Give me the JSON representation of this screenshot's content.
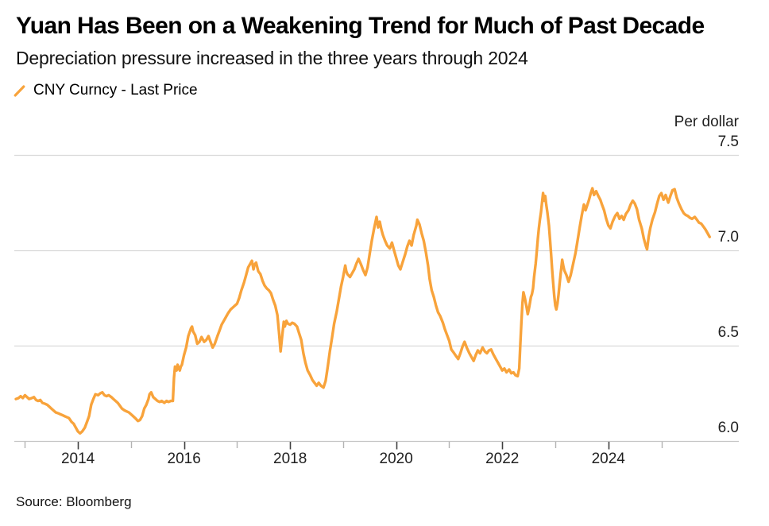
{
  "header": {
    "title": "Yuan Has Been on a Weakening Trend for Much of Past Decade",
    "subtitle": "Depreciation pressure increased in the three years through 2024"
  },
  "legend": {
    "label": "CNY Curncy - Last Price",
    "icon": "orange-slash"
  },
  "source": "Source: Bloomberg",
  "colors": {
    "line": "#F8A33B",
    "grid": "#D9D9D9",
    "baseline": "#C4C4C4",
    "tick_major": "#404040",
    "tick_minor": "#B3B3B3",
    "text": "#1F1F1F"
  },
  "chart_data": {
    "type": "line",
    "series_name": "CNY Curncy - Last Price",
    "ylabel": "Per dollar",
    "grid": true,
    "legend_position": "top-left",
    "y_ticks": [
      7.5,
      7.0,
      6.5,
      6.0
    ],
    "x_major_ticks": [
      2014,
      2016,
      2018,
      2020,
      2022,
      2024
    ],
    "x_minor_ticks": [
      2013,
      2015,
      2017,
      2019,
      2021,
      2023,
      2025
    ],
    "x_range": [
      2012.8,
      2026.46
    ],
    "y_range": [
      6.0,
      7.5
    ],
    "points": [
      [
        2012.83,
        6.22
      ],
      [
        2012.88,
        6.225
      ],
      [
        2012.92,
        6.235
      ],
      [
        2012.96,
        6.225
      ],
      [
        2013.0,
        6.24
      ],
      [
        2013.04,
        6.23
      ],
      [
        2013.08,
        6.22
      ],
      [
        2013.13,
        6.225
      ],
      [
        2013.17,
        6.23
      ],
      [
        2013.21,
        6.215
      ],
      [
        2013.25,
        6.21
      ],
      [
        2013.29,
        6.215
      ],
      [
        2013.33,
        6.2
      ],
      [
        2013.38,
        6.195
      ],
      [
        2013.42,
        6.19
      ],
      [
        2013.46,
        6.18
      ],
      [
        2013.5,
        6.17
      ],
      [
        2013.54,
        6.16
      ],
      [
        2013.58,
        6.15
      ],
      [
        2013.63,
        6.145
      ],
      [
        2013.67,
        6.14
      ],
      [
        2013.71,
        6.135
      ],
      [
        2013.75,
        6.13
      ],
      [
        2013.79,
        6.125
      ],
      [
        2013.83,
        6.12
      ],
      [
        2013.88,
        6.1
      ],
      [
        2013.92,
        6.09
      ],
      [
        2013.96,
        6.07
      ],
      [
        2014.0,
        6.05
      ],
      [
        2014.04,
        6.04
      ],
      [
        2014.08,
        6.05
      ],
      [
        2014.13,
        6.07
      ],
      [
        2014.17,
        6.1
      ],
      [
        2014.21,
        6.13
      ],
      [
        2014.25,
        6.19
      ],
      [
        2014.29,
        6.22
      ],
      [
        2014.33,
        6.245
      ],
      [
        2014.38,
        6.24
      ],
      [
        2014.42,
        6.25
      ],
      [
        2014.46,
        6.255
      ],
      [
        2014.5,
        6.24
      ],
      [
        2014.54,
        6.235
      ],
      [
        2014.58,
        6.24
      ],
      [
        2014.63,
        6.23
      ],
      [
        2014.67,
        6.22
      ],
      [
        2014.71,
        6.21
      ],
      [
        2014.75,
        6.2
      ],
      [
        2014.79,
        6.185
      ],
      [
        2014.83,
        6.17
      ],
      [
        2014.88,
        6.16
      ],
      [
        2014.92,
        6.155
      ],
      [
        2014.96,
        6.15
      ],
      [
        2015.0,
        6.14
      ],
      [
        2015.04,
        6.13
      ],
      [
        2015.08,
        6.12
      ],
      [
        2015.13,
        6.105
      ],
      [
        2015.17,
        6.11
      ],
      [
        2015.21,
        6.13
      ],
      [
        2015.25,
        6.17
      ],
      [
        2015.29,
        6.19
      ],
      [
        2015.33,
        6.22
      ],
      [
        2015.35,
        6.245
      ],
      [
        2015.38,
        6.255
      ],
      [
        2015.42,
        6.23
      ],
      [
        2015.46,
        6.22
      ],
      [
        2015.5,
        6.21
      ],
      [
        2015.54,
        6.205
      ],
      [
        2015.58,
        6.21
      ],
      [
        2015.63,
        6.2
      ],
      [
        2015.67,
        6.21
      ],
      [
        2015.71,
        6.205
      ],
      [
        2015.75,
        6.21
      ],
      [
        2015.79,
        6.21
      ],
      [
        2015.81,
        6.33
      ],
      [
        2015.83,
        6.39
      ],
      [
        2015.86,
        6.37
      ],
      [
        2015.88,
        6.4
      ],
      [
        2015.9,
        6.38
      ],
      [
        2015.92,
        6.37
      ],
      [
        2015.94,
        6.39
      ],
      [
        2015.96,
        6.4
      ],
      [
        2016.0,
        6.45
      ],
      [
        2016.04,
        6.49
      ],
      [
        2016.08,
        6.55
      ],
      [
        2016.13,
        6.59
      ],
      [
        2016.15,
        6.6
      ],
      [
        2016.17,
        6.575
      ],
      [
        2016.21,
        6.555
      ],
      [
        2016.25,
        6.51
      ],
      [
        2016.29,
        6.52
      ],
      [
        2016.33,
        6.545
      ],
      [
        2016.38,
        6.52
      ],
      [
        2016.42,
        6.53
      ],
      [
        2016.46,
        6.55
      ],
      [
        2016.5,
        6.52
      ],
      [
        2016.54,
        6.49
      ],
      [
        2016.58,
        6.51
      ],
      [
        2016.63,
        6.55
      ],
      [
        2016.67,
        6.58
      ],
      [
        2016.71,
        6.61
      ],
      [
        2016.75,
        6.63
      ],
      [
        2016.79,
        6.65
      ],
      [
        2016.83,
        6.67
      ],
      [
        2016.88,
        6.69
      ],
      [
        2016.92,
        6.7
      ],
      [
        2016.96,
        6.71
      ],
      [
        2017.0,
        6.72
      ],
      [
        2017.04,
        6.75
      ],
      [
        2017.08,
        6.79
      ],
      [
        2017.13,
        6.83
      ],
      [
        2017.17,
        6.87
      ],
      [
        2017.21,
        6.91
      ],
      [
        2017.25,
        6.93
      ],
      [
        2017.28,
        6.945
      ],
      [
        2017.31,
        6.9
      ],
      [
        2017.33,
        6.925
      ],
      [
        2017.36,
        6.935
      ],
      [
        2017.4,
        6.89
      ],
      [
        2017.44,
        6.875
      ],
      [
        2017.48,
        6.84
      ],
      [
        2017.52,
        6.815
      ],
      [
        2017.56,
        6.8
      ],
      [
        2017.6,
        6.79
      ],
      [
        2017.64,
        6.775
      ],
      [
        2017.68,
        6.74
      ],
      [
        2017.72,
        6.71
      ],
      [
        2017.76,
        6.66
      ],
      [
        2017.79,
        6.57
      ],
      [
        2017.82,
        6.47
      ],
      [
        2017.85,
        6.55
      ],
      [
        2017.88,
        6.625
      ],
      [
        2017.9,
        6.6
      ],
      [
        2017.93,
        6.63
      ],
      [
        2017.96,
        6.615
      ],
      [
        2018.0,
        6.61
      ],
      [
        2018.04,
        6.62
      ],
      [
        2018.08,
        6.615
      ],
      [
        2018.13,
        6.6
      ],
      [
        2018.17,
        6.565
      ],
      [
        2018.21,
        6.53
      ],
      [
        2018.25,
        6.46
      ],
      [
        2018.29,
        6.41
      ],
      [
        2018.33,
        6.37
      ],
      [
        2018.38,
        6.345
      ],
      [
        2018.42,
        6.32
      ],
      [
        2018.46,
        6.305
      ],
      [
        2018.5,
        6.29
      ],
      [
        2018.54,
        6.305
      ],
      [
        2018.58,
        6.29
      ],
      [
        2018.63,
        6.28
      ],
      [
        2018.67,
        6.315
      ],
      [
        2018.71,
        6.39
      ],
      [
        2018.75,
        6.47
      ],
      [
        2018.79,
        6.54
      ],
      [
        2018.83,
        6.615
      ],
      [
        2018.88,
        6.68
      ],
      [
        2018.92,
        6.745
      ],
      [
        2018.96,
        6.81
      ],
      [
        2019.0,
        6.86
      ],
      [
        2019.04,
        6.92
      ],
      [
        2019.06,
        6.89
      ],
      [
        2019.08,
        6.875
      ],
      [
        2019.13,
        6.86
      ],
      [
        2019.17,
        6.88
      ],
      [
        2019.21,
        6.9
      ],
      [
        2019.25,
        6.93
      ],
      [
        2019.29,
        6.955
      ],
      [
        2019.33,
        6.93
      ],
      [
        2019.38,
        6.895
      ],
      [
        2019.42,
        6.87
      ],
      [
        2019.46,
        6.91
      ],
      [
        2019.5,
        6.98
      ],
      [
        2019.54,
        7.05
      ],
      [
        2019.58,
        7.11
      ],
      [
        2019.63,
        7.175
      ],
      [
        2019.66,
        7.12
      ],
      [
        2019.69,
        7.15
      ],
      [
        2019.72,
        7.11
      ],
      [
        2019.75,
        7.08
      ],
      [
        2019.79,
        7.05
      ],
      [
        2019.83,
        7.025
      ],
      [
        2019.88,
        7.01
      ],
      [
        2019.92,
        7.04
      ],
      [
        2019.96,
        7.0
      ],
      [
        2020.0,
        6.96
      ],
      [
        2020.04,
        6.92
      ],
      [
        2020.08,
        6.9
      ],
      [
        2020.13,
        6.945
      ],
      [
        2020.17,
        6.98
      ],
      [
        2020.21,
        7.02
      ],
      [
        2020.25,
        7.05
      ],
      [
        2020.29,
        7.025
      ],
      [
        2020.33,
        7.08
      ],
      [
        2020.38,
        7.13
      ],
      [
        2020.4,
        7.16
      ],
      [
        2020.44,
        7.135
      ],
      [
        2020.48,
        7.09
      ],
      [
        2020.52,
        7.05
      ],
      [
        2020.56,
        6.99
      ],
      [
        2020.6,
        6.92
      ],
      [
        2020.63,
        6.85
      ],
      [
        2020.67,
        6.79
      ],
      [
        2020.71,
        6.755
      ],
      [
        2020.75,
        6.71
      ],
      [
        2020.79,
        6.675
      ],
      [
        2020.83,
        6.655
      ],
      [
        2020.88,
        6.62
      ],
      [
        2020.92,
        6.585
      ],
      [
        2020.96,
        6.555
      ],
      [
        2021.0,
        6.525
      ],
      [
        2021.04,
        6.48
      ],
      [
        2021.08,
        6.465
      ],
      [
        2021.13,
        6.445
      ],
      [
        2021.17,
        6.43
      ],
      [
        2021.21,
        6.46
      ],
      [
        2021.25,
        6.495
      ],
      [
        2021.29,
        6.52
      ],
      [
        2021.33,
        6.49
      ],
      [
        2021.38,
        6.46
      ],
      [
        2021.42,
        6.44
      ],
      [
        2021.46,
        6.42
      ],
      [
        2021.5,
        6.45
      ],
      [
        2021.54,
        6.475
      ],
      [
        2021.58,
        6.46
      ],
      [
        2021.63,
        6.49
      ],
      [
        2021.67,
        6.47
      ],
      [
        2021.71,
        6.46
      ],
      [
        2021.75,
        6.475
      ],
      [
        2021.79,
        6.48
      ],
      [
        2021.83,
        6.455
      ],
      [
        2021.88,
        6.43
      ],
      [
        2021.92,
        6.41
      ],
      [
        2021.96,
        6.39
      ],
      [
        2022.0,
        6.37
      ],
      [
        2022.04,
        6.38
      ],
      [
        2022.08,
        6.36
      ],
      [
        2022.13,
        6.375
      ],
      [
        2022.17,
        6.355
      ],
      [
        2022.21,
        6.36
      ],
      [
        2022.25,
        6.345
      ],
      [
        2022.29,
        6.34
      ],
      [
        2022.32,
        6.38
      ],
      [
        2022.34,
        6.5
      ],
      [
        2022.36,
        6.62
      ],
      [
        2022.38,
        6.72
      ],
      [
        2022.4,
        6.78
      ],
      [
        2022.43,
        6.745
      ],
      [
        2022.46,
        6.7
      ],
      [
        2022.48,
        6.665
      ],
      [
        2022.5,
        6.69
      ],
      [
        2022.52,
        6.72
      ],
      [
        2022.54,
        6.755
      ],
      [
        2022.56,
        6.77
      ],
      [
        2022.58,
        6.8
      ],
      [
        2022.6,
        6.86
      ],
      [
        2022.63,
        6.93
      ],
      [
        2022.65,
        6.99
      ],
      [
        2022.67,
        7.06
      ],
      [
        2022.69,
        7.115
      ],
      [
        2022.71,
        7.16
      ],
      [
        2022.73,
        7.2
      ],
      [
        2022.75,
        7.25
      ],
      [
        2022.77,
        7.3
      ],
      [
        2022.79,
        7.26
      ],
      [
        2022.81,
        7.285
      ],
      [
        2022.83,
        7.24
      ],
      [
        2022.85,
        7.2
      ],
      [
        2022.88,
        7.13
      ],
      [
        2022.9,
        7.06
      ],
      [
        2022.92,
        6.98
      ],
      [
        2022.94,
        6.9
      ],
      [
        2022.96,
        6.83
      ],
      [
        2022.98,
        6.76
      ],
      [
        2023.0,
        6.71
      ],
      [
        2023.02,
        6.69
      ],
      [
        2023.04,
        6.72
      ],
      [
        2023.06,
        6.765
      ],
      [
        2023.08,
        6.82
      ],
      [
        2023.1,
        6.875
      ],
      [
        2023.13,
        6.95
      ],
      [
        2023.15,
        6.92
      ],
      [
        2023.17,
        6.895
      ],
      [
        2023.21,
        6.87
      ],
      [
        2023.25,
        6.835
      ],
      [
        2023.29,
        6.87
      ],
      [
        2023.33,
        6.92
      ],
      [
        2023.38,
        6.985
      ],
      [
        2023.42,
        7.05
      ],
      [
        2023.46,
        7.12
      ],
      [
        2023.5,
        7.185
      ],
      [
        2023.54,
        7.24
      ],
      [
        2023.57,
        7.21
      ],
      [
        2023.6,
        7.235
      ],
      [
        2023.63,
        7.26
      ],
      [
        2023.67,
        7.3
      ],
      [
        2023.7,
        7.325
      ],
      [
        2023.73,
        7.29
      ],
      [
        2023.77,
        7.31
      ],
      [
        2023.81,
        7.285
      ],
      [
        2023.85,
        7.265
      ],
      [
        2023.88,
        7.24
      ],
      [
        2023.92,
        7.21
      ],
      [
        2023.96,
        7.165
      ],
      [
        2024.0,
        7.13
      ],
      [
        2024.04,
        7.115
      ],
      [
        2024.08,
        7.15
      ],
      [
        2024.13,
        7.18
      ],
      [
        2024.17,
        7.195
      ],
      [
        2024.21,
        7.165
      ],
      [
        2024.25,
        7.18
      ],
      [
        2024.29,
        7.16
      ],
      [
        2024.33,
        7.19
      ],
      [
        2024.38,
        7.21
      ],
      [
        2024.42,
        7.24
      ],
      [
        2024.46,
        7.26
      ],
      [
        2024.5,
        7.245
      ],
      [
        2024.54,
        7.215
      ],
      [
        2024.58,
        7.16
      ],
      [
        2024.63,
        7.115
      ],
      [
        2024.67,
        7.06
      ],
      [
        2024.71,
        7.02
      ],
      [
        2024.73,
        7.005
      ],
      [
        2024.76,
        7.07
      ],
      [
        2024.79,
        7.115
      ],
      [
        2024.83,
        7.16
      ],
      [
        2024.88,
        7.2
      ],
      [
        2024.92,
        7.245
      ],
      [
        2024.96,
        7.285
      ],
      [
        2025.0,
        7.3
      ],
      [
        2025.04,
        7.265
      ],
      [
        2025.08,
        7.29
      ],
      [
        2025.13,
        7.25
      ],
      [
        2025.17,
        7.285
      ],
      [
        2025.21,
        7.315
      ],
      [
        2025.25,
        7.32
      ],
      [
        2025.29,
        7.275
      ],
      [
        2025.33,
        7.245
      ],
      [
        2025.38,
        7.215
      ],
      [
        2025.42,
        7.195
      ],
      [
        2025.46,
        7.185
      ],
      [
        2025.5,
        7.18
      ],
      [
        2025.54,
        7.17
      ],
      [
        2025.58,
        7.165
      ],
      [
        2025.63,
        7.175
      ],
      [
        2025.67,
        7.16
      ],
      [
        2025.71,
        7.145
      ],
      [
        2025.75,
        7.14
      ],
      [
        2025.79,
        7.125
      ],
      [
        2025.83,
        7.11
      ],
      [
        2025.88,
        7.085
      ],
      [
        2025.91,
        7.07
      ]
    ]
  }
}
